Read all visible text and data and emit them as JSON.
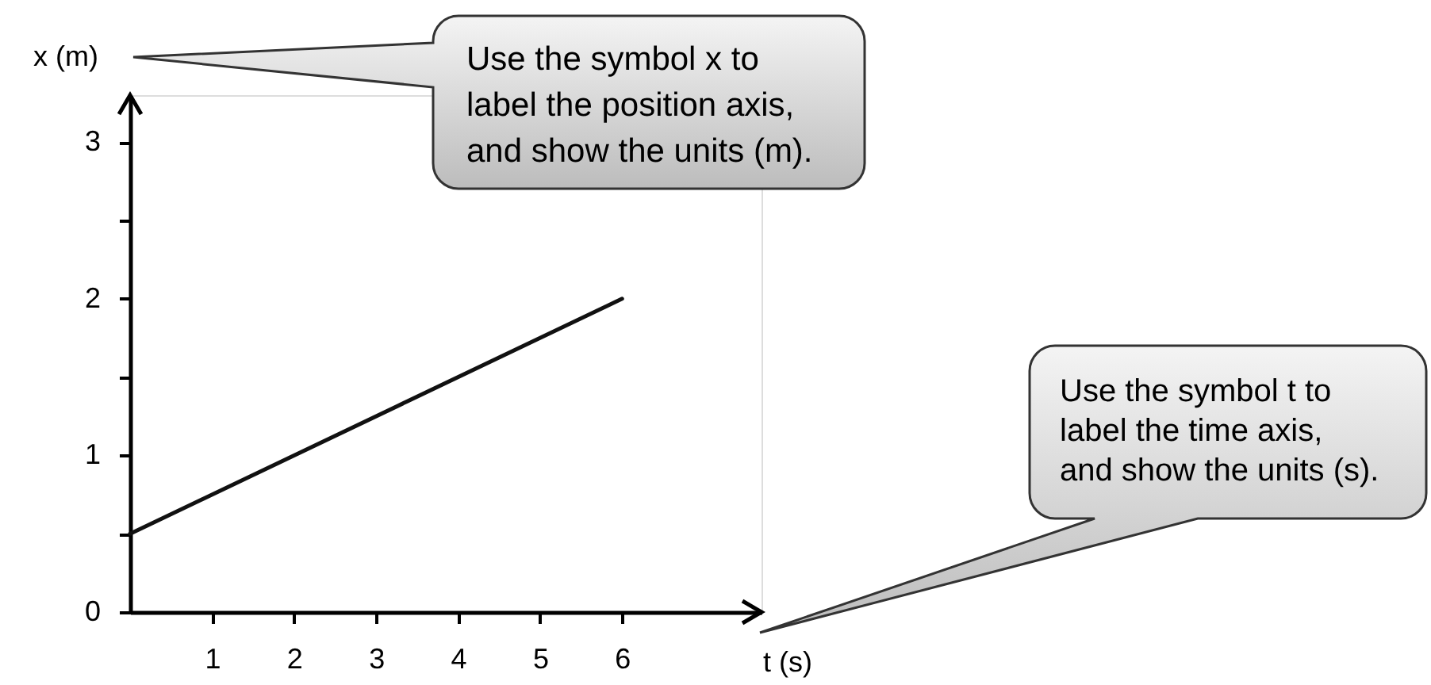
{
  "chart_data": {
    "type": "line",
    "xlabel": "t (s)",
    "ylabel": "x (m)",
    "x": [
      0,
      6
    ],
    "series": [
      {
        "color": "#111111",
        "values": [
          0.5,
          2
        ]
      }
    ],
    "xlim": [
      0,
      7.7
    ],
    "ylim": [
      0,
      3.3
    ],
    "xticks": [
      1,
      2,
      3,
      4,
      5,
      6
    ],
    "yticks": [
      0,
      {
        "value": 0.5,
        "label": null
      },
      1,
      {
        "value": 1.5,
        "label": null
      },
      2,
      {
        "value": 2.5,
        "label": null
      },
      3
    ],
    "marker": "none",
    "line_style": "solid",
    "annotations": [
      "Use the symbol x to\nlabel the position axis,\nand show the units (m).",
      "Use the symbol t to\nlabel the time axis,\nand show the units (s)."
    ]
  }
}
